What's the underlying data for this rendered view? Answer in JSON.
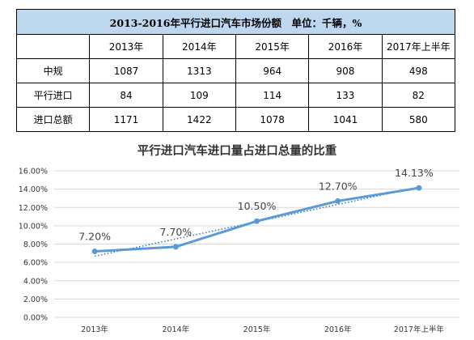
{
  "table": {
    "title": "2013-2016年平行进口汽车市场份额　单位：千辆，%",
    "header": [
      "",
      "2013年",
      "2014年",
      "2015年",
      "2016年",
      "2017年上半年"
    ],
    "rows": [
      [
        "中规",
        "1087",
        "1313",
        "964",
        "908",
        "498"
      ],
      [
        "平行进口",
        "84",
        "109",
        "114",
        "133",
        "82"
      ],
      [
        "进口总额",
        "1171",
        "1422",
        "1078",
        "1041",
        "580"
      ]
    ]
  },
  "chart_data": {
    "type": "line",
    "title": "平行进口汽车进口量占进口总量的比重",
    "categories": [
      "2013年",
      "2014年",
      "2015年",
      "2016年",
      "2017年上半年"
    ],
    "series": [
      {
        "values": [
          7.2,
          7.7,
          10.5,
          12.7,
          14.13
        ],
        "labels": [
          "7.20%",
          "7.70%",
          "10.50%",
          "12.70%",
          "14.13%"
        ]
      }
    ],
    "trendline": "linear",
    "yticks": [
      "0.00%",
      "2.00%",
      "4.00%",
      "6.00%",
      "8.00%",
      "10.00%",
      "12.00%",
      "14.00%",
      "16.00%"
    ],
    "ylim": [
      0,
      16
    ],
    "grid": true,
    "colors": {
      "line": "#5b9bd5",
      "trend": "#2e75b6",
      "grid": "#d9d9d9",
      "header_bg": "#bdd7ee"
    }
  }
}
